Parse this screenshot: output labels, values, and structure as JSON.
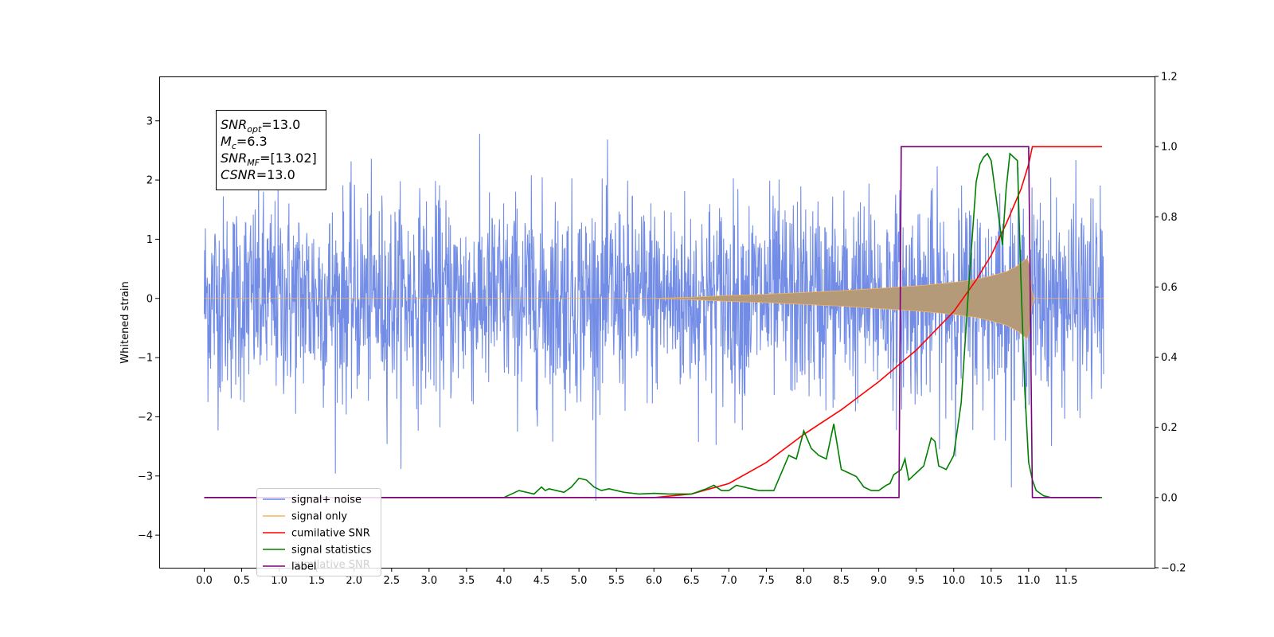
{
  "chart_data": {
    "type": "line",
    "title": "",
    "xlabel": "",
    "ylabel": "Whitened strain",
    "xlim": [
      -0.6,
      12.68
    ],
    "ylim": [
      -4.55,
      3.75
    ],
    "y2lim": [
      -0.2,
      1.2
    ],
    "x_ticks": [
      0.0,
      0.5,
      1.0,
      1.5,
      2.0,
      2.5,
      3.0,
      3.5,
      4.0,
      4.5,
      5.0,
      5.5,
      6.0,
      6.5,
      7.0,
      7.5,
      8.0,
      8.5,
      9.0,
      9.5,
      10.0,
      10.5,
      11.0,
      11.5
    ],
    "x_tick_labels": [
      "0.0",
      "0.5",
      "1.0",
      "1.5",
      "2.0",
      "2.5",
      "3.0",
      "3.5",
      "4.0",
      "4.5",
      "5.0",
      "5.5",
      "6.0",
      "6.5",
      "7.0",
      "7.5",
      "8.0",
      "8.5",
      "9.0",
      "9.5",
      "10.0",
      "10.5",
      "11.0",
      "11.5"
    ],
    "y_ticks": [
      -4,
      -3,
      -2,
      -1,
      0,
      1,
      2,
      3
    ],
    "y_tick_labels": [
      "−4",
      "−3",
      "−2",
      "−1",
      "0",
      "1",
      "2",
      "3"
    ],
    "y2_ticks": [
      -0.2,
      0.0,
      0.2,
      0.4,
      0.6,
      0.8,
      1.0,
      1.2
    ],
    "y2_tick_labels": [
      "−0.2",
      "0.0",
      "0.2",
      "0.4",
      "0.6",
      "0.8",
      "1.0",
      "1.2"
    ],
    "grid": false,
    "legend_position": "lower-left",
    "colors": {
      "noise": "#6b87e5",
      "signal": "#f5b45a",
      "signal_fill": "#b49a78",
      "cumulative_snr": "#ff0000",
      "signal_statistics": "#008000",
      "label": "#7b007b"
    },
    "noise": {
      "x_start": 0.0,
      "x_end": 12.0,
      "amplitude": 1.0
    },
    "signal_envelope": {
      "x": [
        0.0,
        6.0,
        6.5,
        7.0,
        7.5,
        8.0,
        8.5,
        9.0,
        9.5,
        10.0,
        10.3,
        10.5,
        10.7,
        10.85,
        10.95,
        11.0,
        11.05,
        12.0
      ],
      "y": [
        0.0,
        0.0,
        0.02,
        0.05,
        0.07,
        0.1,
        0.13,
        0.17,
        0.21,
        0.27,
        0.32,
        0.38,
        0.45,
        0.55,
        0.65,
        0.7,
        0.0,
        0.0
      ]
    },
    "series": [
      {
        "name": "cumilative SNR",
        "axis": "right",
        "x": [
          0.0,
          6.0,
          6.5,
          7.0,
          7.5,
          8.0,
          8.5,
          9.0,
          9.5,
          10.0,
          10.3,
          10.5,
          10.7,
          10.9,
          11.0,
          11.05,
          11.1,
          11.98
        ],
        "values": [
          0.0,
          0.0,
          0.01,
          0.04,
          0.1,
          0.18,
          0.25,
          0.33,
          0.42,
          0.53,
          0.62,
          0.69,
          0.78,
          0.88,
          0.95,
          1.0,
          1.0,
          1.0
        ]
      },
      {
        "name": "signal statistics",
        "axis": "right",
        "x": [
          0.0,
          3.5,
          4.0,
          4.1,
          4.2,
          4.3,
          4.4,
          4.5,
          4.55,
          4.6,
          4.7,
          4.8,
          4.9,
          5.0,
          5.1,
          5.2,
          5.3,
          5.4,
          5.5,
          5.6,
          5.8,
          6.0,
          6.2,
          6.5,
          6.7,
          6.8,
          6.9,
          7.0,
          7.1,
          7.3,
          7.4,
          7.6,
          7.7,
          7.8,
          7.9,
          8.0,
          8.1,
          8.2,
          8.3,
          8.4,
          8.5,
          8.6,
          8.7,
          8.8,
          8.9,
          9.0,
          9.1,
          9.15,
          9.2,
          9.3,
          9.35,
          9.4,
          9.5,
          9.6,
          9.7,
          9.75,
          9.8,
          9.9,
          10.0,
          10.1,
          10.2,
          10.3,
          10.35,
          10.4,
          10.45,
          10.5,
          10.6,
          10.65,
          10.7,
          10.75,
          10.8,
          10.85,
          10.9,
          10.95,
          11.0,
          11.05,
          11.1,
          11.2,
          11.3,
          11.5,
          11.98
        ],
        "values": [
          0.0,
          0.0,
          0.0,
          0.01,
          0.02,
          0.015,
          0.01,
          0.03,
          0.02,
          0.025,
          0.02,
          0.015,
          0.03,
          0.055,
          0.05,
          0.03,
          0.02,
          0.025,
          0.02,
          0.015,
          0.01,
          0.012,
          0.01,
          0.01,
          0.025,
          0.035,
          0.02,
          0.02,
          0.035,
          0.025,
          0.02,
          0.02,
          0.07,
          0.12,
          0.11,
          0.19,
          0.14,
          0.12,
          0.11,
          0.21,
          0.08,
          0.07,
          0.06,
          0.03,
          0.02,
          0.02,
          0.035,
          0.04,
          0.065,
          0.08,
          0.11,
          0.05,
          0.07,
          0.09,
          0.17,
          0.16,
          0.09,
          0.08,
          0.12,
          0.27,
          0.6,
          0.9,
          0.95,
          0.97,
          0.98,
          0.96,
          0.8,
          0.72,
          0.88,
          0.98,
          0.97,
          0.96,
          0.6,
          0.3,
          0.1,
          0.05,
          0.02,
          0.005,
          0.0,
          0.0,
          0.0
        ]
      },
      {
        "name": "label",
        "axis": "right",
        "x": [
          0.0,
          9.27,
          9.3,
          11.0,
          11.05,
          11.95
        ],
        "values": [
          0.0,
          0.0,
          1.0,
          1.0,
          0.0,
          0.0
        ]
      }
    ],
    "legend": [
      "signal+ noise",
      "signal only",
      "cumilative SNR",
      "signal statistics",
      "label"
    ],
    "legend_overlap_text": "cumilative SNR",
    "stats_box": [
      {
        "main": "SNR",
        "sub": "opt",
        "rest": "=13.0"
      },
      {
        "main": "M",
        "sub": "c",
        "rest": "=6.3"
      },
      {
        "main": "SNR",
        "sub": "MF",
        "rest": "=[13.02]"
      },
      {
        "main": "CSNR",
        "sub": "",
        "rest": "=13.0"
      }
    ]
  }
}
